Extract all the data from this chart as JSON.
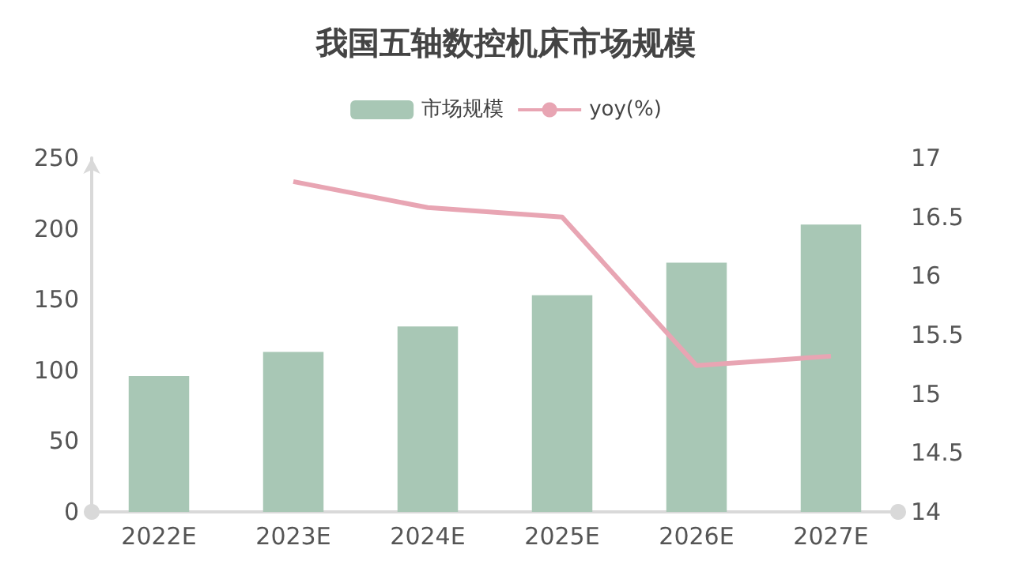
{
  "chart_data": {
    "type": "bar",
    "title": "我国五轴数控机床市场规模",
    "categories": [
      "2022E",
      "2023E",
      "2024E",
      "2025E",
      "2026E",
      "2027E"
    ],
    "series": [
      {
        "name": "市场规模",
        "color": "#a8c7b5",
        "values": [
          96,
          113,
          131,
          153,
          176,
          203
        ]
      },
      {
        "name": "yoy(%)",
        "type": "line",
        "axis": "y2",
        "color": "#e8a5b3",
        "values": [
          null,
          16.8,
          16.58,
          16.5,
          15.24,
          15.32
        ]
      }
    ],
    "ylim": [
      0,
      250
    ],
    "yticks": [
      0,
      50,
      100,
      150,
      200,
      250
    ],
    "y2lim": [
      14,
      17
    ],
    "y2ticks": [
      14,
      14.5,
      15,
      15.5,
      16,
      16.5,
      17
    ],
    "grid": false,
    "legend": "top",
    "marker": "none"
  }
}
